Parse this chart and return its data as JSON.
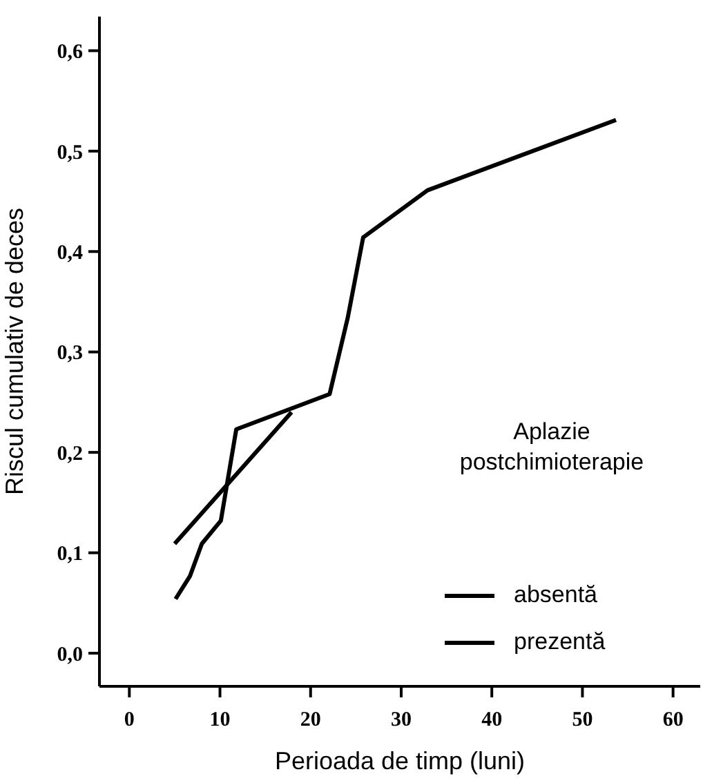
{
  "chart_data": {
    "type": "line",
    "xlabel": "Perioada de timp (luni)",
    "ylabel": "Riscul cumulativ de deces",
    "legend_title": "Aplazie postchimioterapie",
    "series": [
      {
        "name": "absentă",
        "color": "#000000",
        "x": [
          5.1,
          6.7,
          8,
          10.1,
          11.8,
          22.1,
          24.1,
          25.8,
          32.9,
          53.7
        ],
        "values": [
          0.054,
          0.077,
          0.109,
          0.132,
          0.223,
          0.258,
          0.334,
          0.414,
          0.461,
          0.531
        ]
      },
      {
        "name": "prezentă",
        "color": "#000000",
        "x": [
          5,
          17.9
        ],
        "values": [
          0.109,
          0.24
        ]
      }
    ],
    "xlim": [
      -3.3,
      63
    ],
    "xticks": [
      0,
      10,
      20,
      30,
      40,
      50,
      60
    ],
    "ylim": [
      -0.033,
      0.634
    ],
    "yticks": [
      {
        "value": 0,
        "label": "0,0"
      },
      {
        "value": 0.1,
        "label": "0,1"
      },
      {
        "value": 0.2,
        "label": "0,2"
      },
      {
        "value": 0.3,
        "label": "0,3"
      },
      {
        "value": 0.4,
        "label": "0,4"
      },
      {
        "value": 0.5,
        "label": "0,5"
      },
      {
        "value": 0.6,
        "label": "0,6"
      }
    ],
    "grid": false,
    "legend": "bottom right",
    "marker": "none",
    "line_style": "solid"
  }
}
